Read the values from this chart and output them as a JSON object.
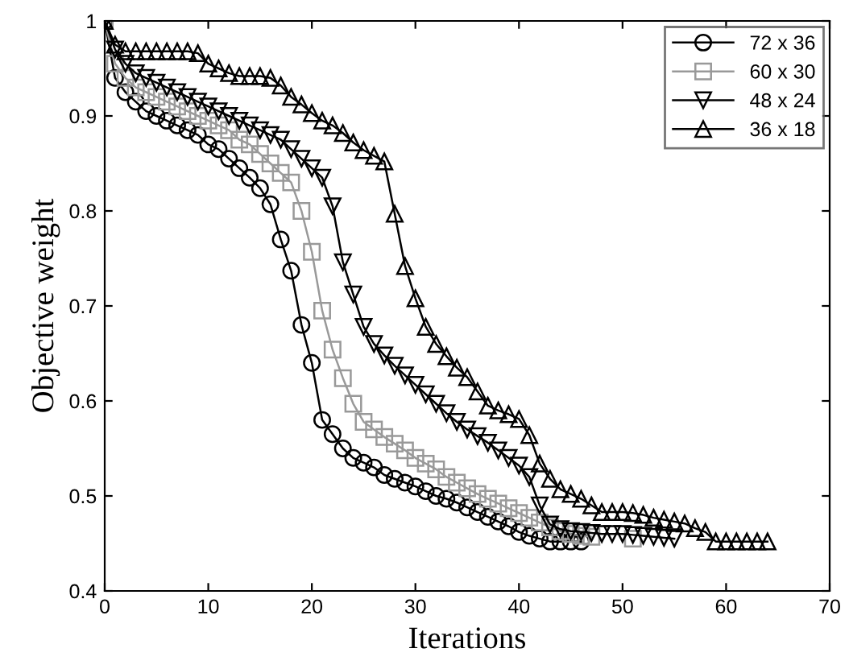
{
  "chart_data": {
    "type": "line",
    "xlabel": "Iterations",
    "ylabel": "Objective weight",
    "xlim": [
      0,
      70
    ],
    "xticks": [
      0,
      10,
      20,
      30,
      40,
      50,
      60,
      70
    ],
    "ylim": [
      0.4,
      1
    ],
    "yticks": [
      0.4,
      0.5,
      0.6,
      0.7,
      0.8,
      0.9,
      1
    ],
    "grid": false,
    "legend": "top right",
    "line_style": "solid",
    "series": [
      {
        "name": "72 x 36",
        "color": "#000000",
        "marker": "circle",
        "x": [
          0,
          1,
          2,
          3,
          4,
          5,
          6,
          7,
          8,
          9,
          10,
          11,
          12,
          13,
          14,
          15,
          16,
          17,
          18,
          19,
          20,
          21,
          22,
          23,
          24,
          25,
          26,
          27,
          28,
          29,
          30,
          31,
          32,
          33,
          34,
          35,
          36,
          37,
          38,
          39,
          40,
          41,
          42,
          43,
          44,
          45,
          46
        ],
        "values": [
          1.0,
          0.94,
          0.925,
          0.915,
          0.905,
          0.9,
          0.895,
          0.89,
          0.885,
          0.88,
          0.87,
          0.865,
          0.855,
          0.845,
          0.835,
          0.824,
          0.807,
          0.77,
          0.737,
          0.68,
          0.64,
          0.58,
          0.565,
          0.55,
          0.54,
          0.535,
          0.53,
          0.522,
          0.518,
          0.514,
          0.51,
          0.505,
          0.5,
          0.497,
          0.493,
          0.488,
          0.483,
          0.478,
          0.473,
          0.468,
          0.462,
          0.458,
          0.455,
          0.452,
          0.452,
          0.452,
          0.452
        ]
      },
      {
        "name": "60 x 30",
        "color": "#999999",
        "marker": "square",
        "x": [
          0,
          1,
          2,
          3,
          4,
          5,
          6,
          7,
          8,
          9,
          10,
          11,
          12,
          13,
          14,
          15,
          16,
          17,
          18,
          19,
          20,
          21,
          22,
          23,
          24,
          25,
          26,
          27,
          28,
          29,
          30,
          31,
          32,
          33,
          34,
          35,
          36,
          37,
          38,
          39,
          40,
          41,
          42,
          43,
          44,
          45,
          46,
          47,
          48,
          49,
          50,
          51
        ],
        "values": [
          1.0,
          0.955,
          0.94,
          0.93,
          0.925,
          0.92,
          0.915,
          0.91,
          0.905,
          0.9,
          0.895,
          0.89,
          0.885,
          0.875,
          0.87,
          0.86,
          0.85,
          0.84,
          0.83,
          0.8,
          0.757,
          0.695,
          0.654,
          0.624,
          0.597,
          0.578,
          0.57,
          0.562,
          0.555,
          0.548,
          0.54,
          0.534,
          0.528,
          0.52,
          0.514,
          0.508,
          0.502,
          0.497,
          0.492,
          0.487,
          0.482,
          0.477,
          0.472,
          0.467,
          0.463,
          0.46,
          0.458,
          0.457,
          null,
          null,
          null,
          0.455
        ]
      },
      {
        "name": "48 x 24",
        "color": "#000000",
        "marker": "triangle_down",
        "x": [
          0,
          1,
          2,
          3,
          4,
          5,
          6,
          7,
          8,
          9,
          10,
          11,
          12,
          13,
          14,
          15,
          16,
          17,
          18,
          19,
          20,
          21,
          22,
          23,
          24,
          25,
          26,
          27,
          28,
          29,
          30,
          31,
          32,
          33,
          34,
          35,
          36,
          37,
          38,
          39,
          40,
          41,
          42,
          43,
          44,
          45,
          46,
          47,
          48,
          49,
          50,
          51,
          52,
          53,
          54,
          55
        ],
        "values": [
          1.0,
          0.97,
          0.955,
          0.945,
          0.94,
          0.935,
          0.93,
          0.925,
          0.92,
          0.915,
          0.91,
          0.905,
          0.9,
          0.895,
          0.89,
          0.885,
          0.88,
          0.875,
          0.865,
          0.855,
          0.845,
          0.835,
          0.805,
          0.746,
          0.712,
          0.678,
          0.66,
          0.648,
          0.637,
          0.627,
          0.617,
          0.607,
          0.597,
          0.587,
          0.578,
          0.57,
          0.563,
          0.556,
          0.548,
          0.54,
          0.532,
          0.52,
          0.49,
          0.47,
          0.465,
          0.463,
          0.462,
          0.461,
          0.46,
          0.46,
          0.46,
          0.459,
          0.458,
          0.457,
          0.456,
          0.455
        ]
      },
      {
        "name": "36 x 18",
        "color": "#000000",
        "marker": "triangle",
        "x": [
          0,
          1,
          2,
          3,
          4,
          5,
          6,
          7,
          8,
          9,
          10,
          11,
          12,
          13,
          14,
          15,
          16,
          17,
          18,
          19,
          20,
          21,
          22,
          23,
          24,
          25,
          26,
          27,
          28,
          29,
          30,
          31,
          32,
          33,
          34,
          35,
          36,
          37,
          38,
          39,
          40,
          41,
          42,
          43,
          44,
          45,
          46,
          47,
          48,
          49,
          50,
          51,
          52,
          53,
          54,
          55,
          56,
          57,
          58,
          59,
          60,
          61,
          62,
          63,
          64
        ],
        "values": [
          1.0,
          0.975,
          0.968,
          0.968,
          0.968,
          0.968,
          0.968,
          0.968,
          0.968,
          0.966,
          0.955,
          0.95,
          0.945,
          0.942,
          0.942,
          0.942,
          0.94,
          0.932,
          0.92,
          0.912,
          0.903,
          0.895,
          0.89,
          0.882,
          0.872,
          0.864,
          0.858,
          0.852,
          0.797,
          0.742,
          0.708,
          0.678,
          0.66,
          0.647,
          0.635,
          0.625,
          0.61,
          0.595,
          0.59,
          0.586,
          0.581,
          0.564,
          0.534,
          0.518,
          0.507,
          0.502,
          0.497,
          0.49,
          0.483,
          0.483,
          0.483,
          0.482,
          0.48,
          0.477,
          0.475,
          0.473,
          0.471,
          0.466,
          0.462,
          0.452,
          0.452,
          0.452,
          0.452,
          0.452,
          0.452
        ]
      }
    ]
  }
}
